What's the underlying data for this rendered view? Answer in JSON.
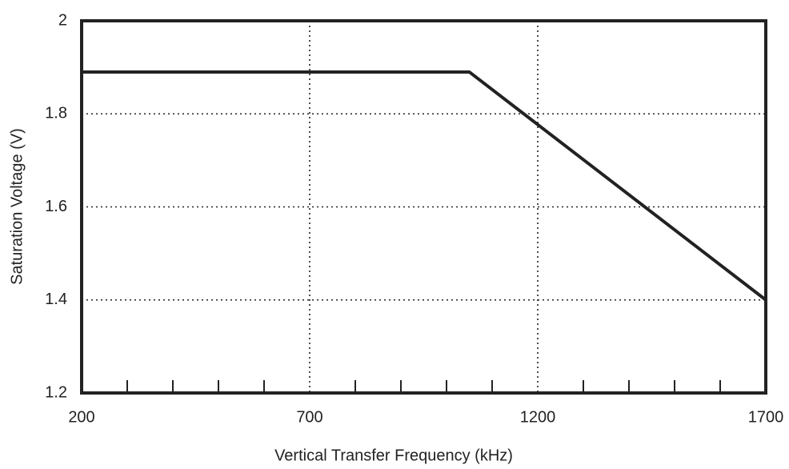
{
  "chart_data": {
    "type": "line",
    "x_label": "Vertical Transfer Frequency (kHz)",
    "y_label": "Saturation Voltage (V)",
    "series": [
      {
        "name": "Saturation Voltage",
        "color": "#222222",
        "x": [
          200,
          1050,
          1700
        ],
        "values": [
          1.89,
          1.89,
          1.4
        ]
      }
    ],
    "xlim": [
      200,
      1700
    ],
    "xticks": [
      200,
      700,
      1200,
      1700
    ],
    "xminorticks": [
      300,
      400,
      500,
      600,
      800,
      900,
      1000,
      1100,
      1300,
      1400,
      1500,
      1600
    ],
    "ylim": [
      1.2,
      2
    ],
    "yticks": [
      1.2,
      1.4,
      1.6,
      1.8,
      2
    ],
    "grid": true
  }
}
